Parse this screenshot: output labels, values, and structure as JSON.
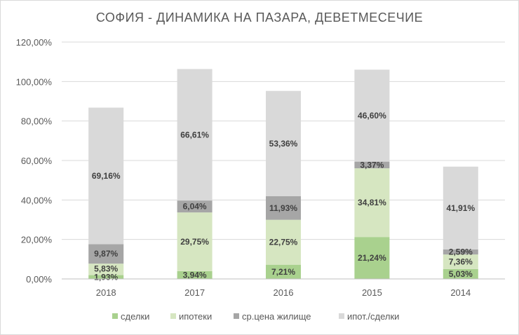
{
  "chart_data": {
    "type": "bar",
    "stacked": true,
    "title": "СОФИЯ - ДИНАМИКА НА ПАЗАРА, ДЕВЕТМЕСЕЧИЕ",
    "categories": [
      "2018",
      "2017",
      "2016",
      "2015",
      "2014"
    ],
    "ylim": [
      0,
      120
    ],
    "yticks": [
      "0,00%",
      "20,00%",
      "40,00%",
      "60,00%",
      "80,00%",
      "100,00%",
      "120,00%"
    ],
    "grid": true,
    "legend_position": "bottom",
    "series": [
      {
        "name": "сделки",
        "color": "#a9d18e",
        "values": [
          1.93,
          3.94,
          7.21,
          21.24,
          5.03
        ],
        "labels": [
          "1,93%",
          "3,94%",
          "7,21%",
          "21,24%",
          "5,03%"
        ]
      },
      {
        "name": "ипотеки",
        "color": "#d6e6c1",
        "values": [
          5.83,
          29.75,
          22.75,
          34.81,
          7.36
        ],
        "labels": [
          "5,83%",
          "29,75%",
          "22,75%",
          "34,81%",
          "7,36%"
        ]
      },
      {
        "name": "ср.цена жилище",
        "color": "#a6a6a6",
        "values": [
          9.87,
          6.04,
          11.93,
          3.37,
          2.59
        ],
        "labels": [
          "9,87%",
          "6,04%",
          "11,93%",
          "3,37%",
          "2,59%"
        ]
      },
      {
        "name": "ипот./сделки",
        "color": "#d9d9d9",
        "values": [
          69.16,
          66.61,
          53.36,
          46.6,
          41.91
        ],
        "labels": [
          "69,16%",
          "66,61%",
          "53,36%",
          "46,60%",
          "41,91%"
        ]
      }
    ]
  }
}
